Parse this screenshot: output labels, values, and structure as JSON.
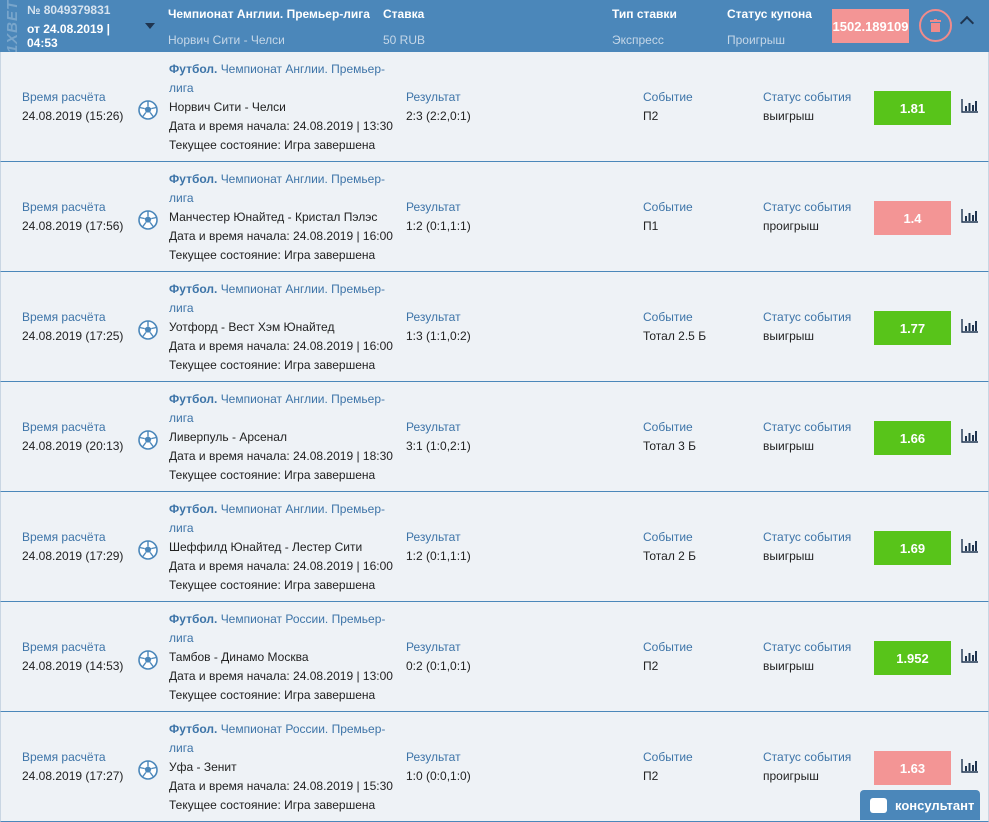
{
  "header": {
    "logo": "1XBET",
    "number": "№ 8049379831",
    "date": "от 24.08.2019 |",
    "time": "04:53",
    "league": "Чемпионат Англии. Премьер-лига",
    "match": "Норвич Сити - Челси",
    "stake_label": "Ставка",
    "stake": "50 RUB",
    "type_label": "Тип ставки",
    "type": "Экспресс",
    "status_label": "Статус купона",
    "status": "Проигрыш",
    "total": "1502.189109"
  },
  "labels": {
    "calc": "Время расчёта",
    "result": "Результат",
    "event": "Событие",
    "event_status": "Статус события",
    "sport": "Футбол."
  },
  "colors": {
    "win": "#58c41a",
    "loss": "#f39595",
    "header": "#4b87ba"
  },
  "rows": [
    {
      "calc": "24.08.2019 (15:26)",
      "league": "Чемпионат Англии. Премьер-",
      "league2": "лига",
      "match": "Норвич Сити - Челси",
      "start": "Дата и время начала: 24.08.2019 | 13:30",
      "state": "Текущее состояние: Игра завершена",
      "result": "2:3 (2:2,0:1)",
      "event": "П2",
      "status": "выигрыш",
      "odd": "1.81",
      "win": true
    },
    {
      "calc": "24.08.2019 (17:56)",
      "league": "Чемпионат Англии. Премьер-",
      "league2": "лига",
      "match": "Манчестер Юнайтед - Кристал Пэлэс",
      "start": "Дата и время начала: 24.08.2019 | 16:00",
      "state": "Текущее состояние: Игра завершена",
      "result": "1:2 (0:1,1:1)",
      "event": "П1",
      "status": "проигрыш",
      "odd": "1.4",
      "win": false
    },
    {
      "calc": "24.08.2019 (17:25)",
      "league": "Чемпионат Англии. Премьер-",
      "league2": "лига",
      "match": "Уотфорд - Вест Хэм Юнайтед",
      "start": "Дата и время начала: 24.08.2019 | 16:00",
      "state": "Текущее состояние: Игра завершена",
      "result": "1:3 (1:1,0:2)",
      "event": "Тотал 2.5 Б",
      "status": "выигрыш",
      "odd": "1.77",
      "win": true
    },
    {
      "calc": "24.08.2019 (20:13)",
      "league": "Чемпионат Англии. Премьер-",
      "league2": "лига",
      "match": "Ливерпуль - Арсенал",
      "start": "Дата и время начала: 24.08.2019 | 18:30",
      "state": "Текущее состояние: Игра завершена",
      "result": "3:1 (1:0,2:1)",
      "event": "Тотал 3 Б",
      "status": "выигрыш",
      "odd": "1.66",
      "win": true
    },
    {
      "calc": "24.08.2019 (17:29)",
      "league": "Чемпионат Англии. Премьер-",
      "league2": "лига",
      "match": "Шеффилд Юнайтед - Лестер Сити",
      "start": "Дата и время начала: 24.08.2019 | 16:00",
      "state": "Текущее состояние: Игра завершена",
      "result": "1:2 (0:1,1:1)",
      "event": "Тотал 2 Б",
      "status": "выигрыш",
      "odd": "1.69",
      "win": true
    },
    {
      "calc": "24.08.2019 (14:53)",
      "league": "Чемпионат России. Премьер-",
      "league2": "лига",
      "match": "Тамбов - Динамо Москва",
      "start": "Дата и время начала: 24.08.2019 | 13:00",
      "state": "Текущее состояние: Игра завершена",
      "result": "0:2 (0:1,0:1)",
      "event": "П2",
      "status": "выигрыш",
      "odd": "1.952",
      "win": true
    },
    {
      "calc": "24.08.2019 (17:27)",
      "league": "Чемпионат России. Премьер-",
      "league2": "лига",
      "match": "Уфа - Зенит",
      "start": "Дата и время начала: 24.08.2019 | 15:30",
      "state": "Текущее состояние: Игра завершена",
      "result": "1:0 (0:0,1:0)",
      "event": "П2",
      "status": "проигрыш",
      "odd": "1.63",
      "win": false
    }
  ],
  "consultant": "консультант"
}
